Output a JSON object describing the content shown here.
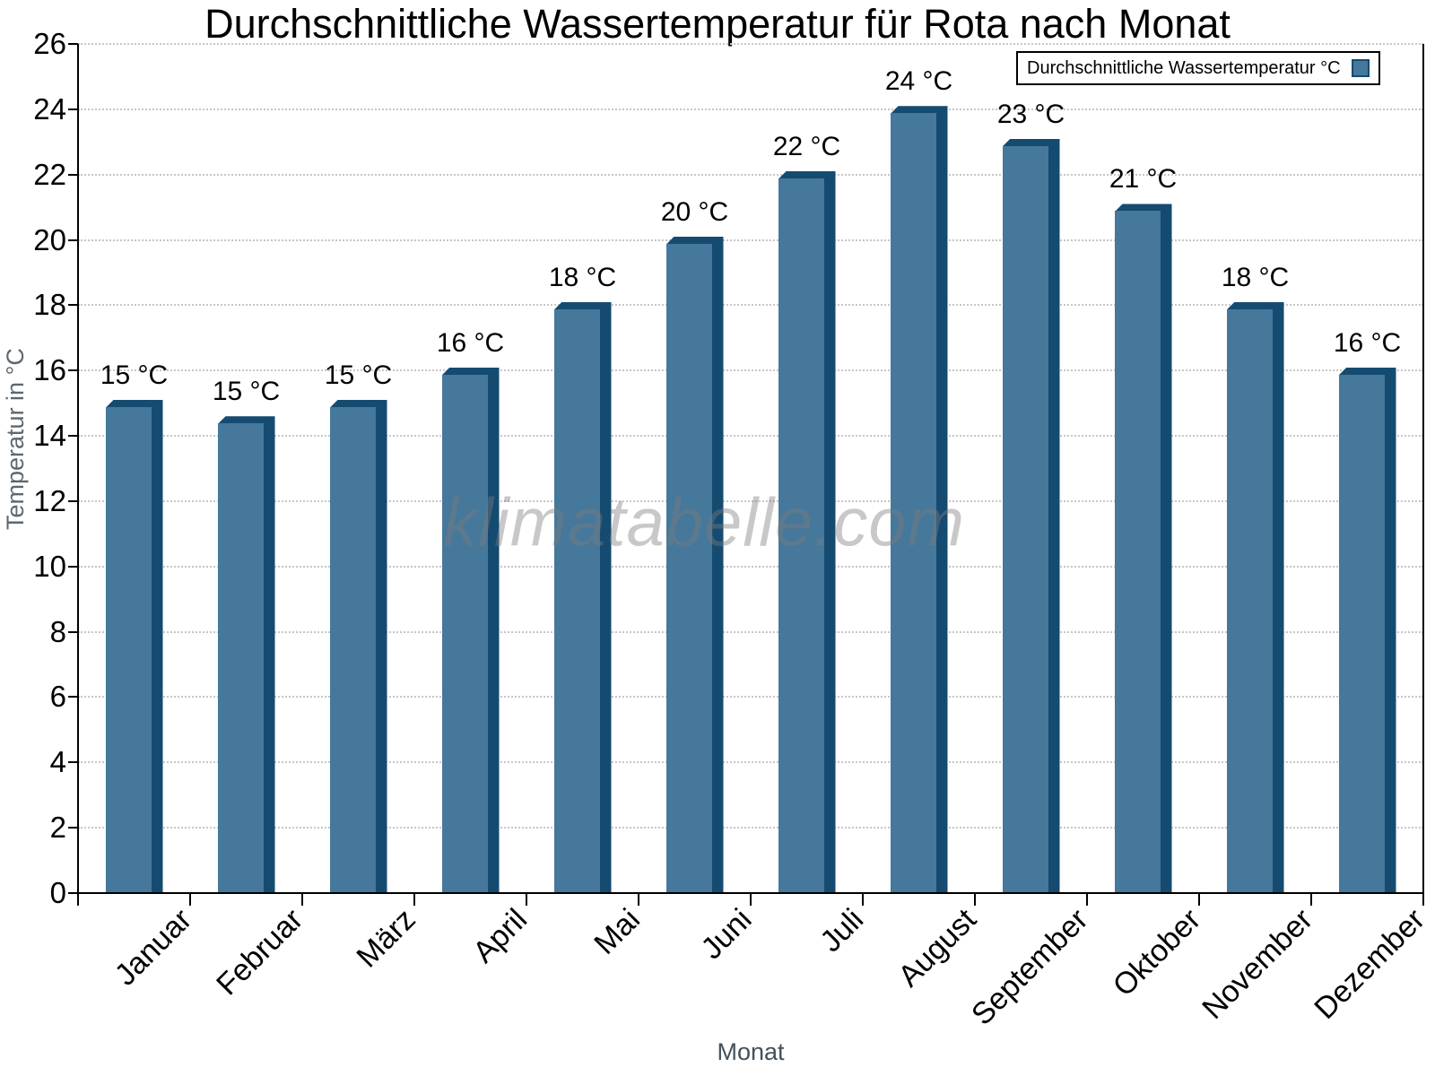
{
  "chart_data": {
    "type": "bar",
    "title": "Durchschnittliche Wassertemperatur für Rota nach Monat",
    "xlabel": "Monat",
    "ylabel": "Temperatur in °C",
    "categories": [
      "Januar",
      "Februar",
      "März",
      "April",
      "Mai",
      "Juni",
      "Juli",
      "August",
      "September",
      "Oktober",
      "November",
      "Dezember"
    ],
    "values": [
      15.1,
      14.6,
      15.1,
      16.1,
      18.1,
      20.1,
      22.1,
      24.1,
      23.1,
      21.1,
      18.1,
      16.1
    ],
    "bar_labels": [
      "15 °C",
      "15 °C",
      "15 °C",
      "16 °C",
      "18 °C",
      "20 °C",
      "22 °C",
      "24 °C",
      "23 °C",
      "21 °C",
      "18 °C",
      "16 °C"
    ],
    "ylim": [
      0,
      26
    ],
    "yticks": [
      0,
      2,
      4,
      6,
      8,
      10,
      12,
      14,
      16,
      18,
      20,
      22,
      24,
      26
    ],
    "grid": "horizontal-dotted",
    "legend": {
      "label": "Durchschnittliche Wassertemperatur °C",
      "position": "top-right"
    },
    "watermark": "klimatabelle.com",
    "colors": {
      "bar_face": "#45789A",
      "bar_edge": "#154B70",
      "grid": "#c6c6c6",
      "axis": "#000000",
      "y_axis_title_text": "#5c6771",
      "x_axis_title_text": "#454f59",
      "watermark_text": "#c4c4c4",
      "legend_border": "#000000"
    }
  }
}
